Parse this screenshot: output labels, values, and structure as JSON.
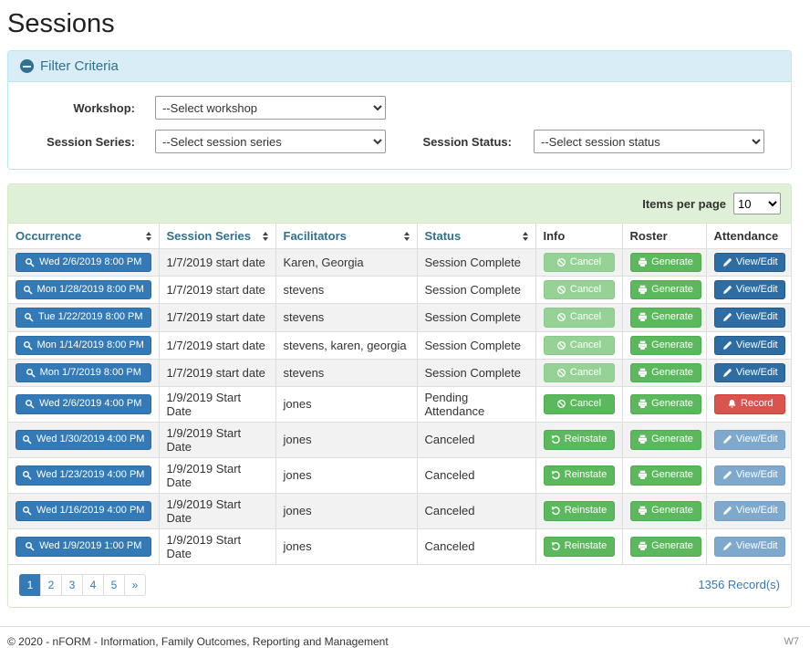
{
  "page": {
    "title": "Sessions",
    "footer": {
      "copyright": "© 2020 - nFORM - Information, Family Outcomes, Reporting and Management",
      "environment": "W7"
    }
  },
  "filter": {
    "title": "Filter Criteria",
    "workshop": {
      "label": "Workshop:",
      "selected": "--Select workshop"
    },
    "session_series": {
      "label": "Session Series:",
      "selected": "--Select session series"
    },
    "session_status": {
      "label": "Session Status:",
      "selected": "--Select session status"
    }
  },
  "table": {
    "items_per_page": {
      "label": "Items per page",
      "selected": "10"
    },
    "columns": [
      {
        "label": "Occurrence",
        "sortable": true
      },
      {
        "label": "Session Series",
        "sortable": true
      },
      {
        "label": "Facilitators",
        "sortable": true
      },
      {
        "label": "Status",
        "sortable": true
      },
      {
        "label": "Info",
        "sortable": false
      },
      {
        "label": "Roster",
        "sortable": false
      },
      {
        "label": "Attendance",
        "sortable": false
      }
    ],
    "rows": [
      {
        "occurrence": "Wed 2/6/2019 8:00 PM",
        "occurrence_icon": "search-icon",
        "session_series": "1/7/2019 start date",
        "facilitators": "Karen, Georgia",
        "status": "Session Complete",
        "info": {
          "label": "Cancel",
          "icon": "ban-icon",
          "variant": "success",
          "disabled": true
        },
        "roster": {
          "label": "Generate",
          "icon": "print-icon",
          "variant": "success",
          "disabled": false
        },
        "attendance": {
          "label": "View/Edit",
          "icon": "pencil-icon",
          "variant": "primary",
          "disabled": false
        }
      },
      {
        "occurrence": "Mon 1/28/2019 8:00 PM",
        "occurrence_icon": "search-icon",
        "session_series": "1/7/2019 start date",
        "facilitators": "stevens",
        "status": "Session Complete",
        "info": {
          "label": "Cancel",
          "icon": "ban-icon",
          "variant": "success",
          "disabled": true
        },
        "roster": {
          "label": "Generate",
          "icon": "print-icon",
          "variant": "success",
          "disabled": false
        },
        "attendance": {
          "label": "View/Edit",
          "icon": "pencil-icon",
          "variant": "primary",
          "disabled": false
        }
      },
      {
        "occurrence": "Tue 1/22/2019 8:00 PM",
        "occurrence_icon": "search-icon",
        "session_series": "1/7/2019 start date",
        "facilitators": "stevens",
        "status": "Session Complete",
        "info": {
          "label": "Cancel",
          "icon": "ban-icon",
          "variant": "success",
          "disabled": true
        },
        "roster": {
          "label": "Generate",
          "icon": "print-icon",
          "variant": "success",
          "disabled": false
        },
        "attendance": {
          "label": "View/Edit",
          "icon": "pencil-icon",
          "variant": "primary",
          "disabled": false
        }
      },
      {
        "occurrence": "Mon 1/14/2019 8:00 PM",
        "occurrence_icon": "search-icon",
        "session_series": "1/7/2019 start date",
        "facilitators": "stevens, karen, georgia",
        "status": "Session Complete",
        "info": {
          "label": "Cancel",
          "icon": "ban-icon",
          "variant": "success",
          "disabled": true
        },
        "roster": {
          "label": "Generate",
          "icon": "print-icon",
          "variant": "success",
          "disabled": false
        },
        "attendance": {
          "label": "View/Edit",
          "icon": "pencil-icon",
          "variant": "primary",
          "disabled": false
        }
      },
      {
        "occurrence": "Mon 1/7/2019 8:00 PM",
        "occurrence_icon": "search-icon",
        "session_series": "1/7/2019 start date",
        "facilitators": "stevens",
        "status": "Session Complete",
        "info": {
          "label": "Cancel",
          "icon": "ban-icon",
          "variant": "success",
          "disabled": true
        },
        "roster": {
          "label": "Generate",
          "icon": "print-icon",
          "variant": "success",
          "disabled": false
        },
        "attendance": {
          "label": "View/Edit",
          "icon": "pencil-icon",
          "variant": "primary",
          "disabled": false
        }
      },
      {
        "occurrence": "Wed 2/6/2019 4:00 PM",
        "occurrence_icon": "search-icon",
        "session_series": "1/9/2019 Start Date",
        "facilitators": "jones",
        "status": "Pending Attendance",
        "info": {
          "label": "Cancel",
          "icon": "ban-icon",
          "variant": "success",
          "disabled": false
        },
        "roster": {
          "label": "Generate",
          "icon": "print-icon",
          "variant": "success",
          "disabled": false
        },
        "attendance": {
          "label": "Record",
          "icon": "bell-icon",
          "variant": "danger",
          "disabled": false
        }
      },
      {
        "occurrence": "Wed 1/30/2019 4:00 PM",
        "occurrence_icon": "search-icon",
        "session_series": "1/9/2019 Start Date",
        "facilitators": "jones",
        "status": "Canceled",
        "info": {
          "label": "Reinstate",
          "icon": "undo-icon",
          "variant": "success",
          "disabled": false
        },
        "roster": {
          "label": "Generate",
          "icon": "print-icon",
          "variant": "success",
          "disabled": false
        },
        "attendance": {
          "label": "View/Edit",
          "icon": "pencil-icon",
          "variant": "primary",
          "disabled": true
        }
      },
      {
        "occurrence": "Wed 1/23/2019 4:00 PM",
        "occurrence_icon": "search-icon",
        "session_series": "1/9/2019 Start Date",
        "facilitators": "jones",
        "status": "Canceled",
        "info": {
          "label": "Reinstate",
          "icon": "undo-icon",
          "variant": "success",
          "disabled": false
        },
        "roster": {
          "label": "Generate",
          "icon": "print-icon",
          "variant": "success",
          "disabled": false
        },
        "attendance": {
          "label": "View/Edit",
          "icon": "pencil-icon",
          "variant": "primary",
          "disabled": true
        }
      },
      {
        "occurrence": "Wed 1/16/2019 4:00 PM",
        "occurrence_icon": "search-icon",
        "session_series": "1/9/2019 Start Date",
        "facilitators": "jones",
        "status": "Canceled",
        "info": {
          "label": "Reinstate",
          "icon": "undo-icon",
          "variant": "success",
          "disabled": false
        },
        "roster": {
          "label": "Generate",
          "icon": "print-icon",
          "variant": "success",
          "disabled": false
        },
        "attendance": {
          "label": "View/Edit",
          "icon": "pencil-icon",
          "variant": "primary",
          "disabled": true
        }
      },
      {
        "occurrence": "Wed 1/9/2019 1:00 PM",
        "occurrence_icon": "search-icon",
        "session_series": "1/9/2019 Start Date",
        "facilitators": "jones",
        "status": "Canceled",
        "info": {
          "label": "Reinstate",
          "icon": "undo-icon",
          "variant": "success",
          "disabled": false
        },
        "roster": {
          "label": "Generate",
          "icon": "print-icon",
          "variant": "success",
          "disabled": false
        },
        "attendance": {
          "label": "View/Edit",
          "icon": "pencil-icon",
          "variant": "primary",
          "disabled": true
        }
      }
    ],
    "pagination": [
      {
        "label": "1",
        "active": true
      },
      {
        "label": "2",
        "active": false
      },
      {
        "label": "3",
        "active": false
      },
      {
        "label": "4",
        "active": false
      },
      {
        "label": "5",
        "active": false
      },
      {
        "label": "»",
        "active": false
      }
    ],
    "records_text": "1356 Record(s)"
  },
  "colors": {
    "primary_blue": "#337ab7",
    "dark_blue": "#2e6da4",
    "success_green": "#5cb85c",
    "danger_red": "#d9534f",
    "filter_header_bg": "#d9edf7",
    "filter_header_text": "#31708f",
    "table_toolbar_bg": "#dff0d8",
    "table_panel_border": "#d6e9c6"
  }
}
